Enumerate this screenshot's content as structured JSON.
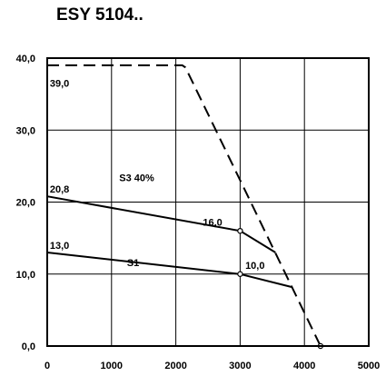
{
  "chart_data": {
    "type": "line",
    "title": "ESY 5104..",
    "xlabel": "",
    "ylabel": "",
    "xlim": [
      0,
      5000
    ],
    "ylim": [
      0,
      40
    ],
    "xticks": [
      0,
      1000,
      2000,
      3000,
      4000,
      5000
    ],
    "yticks": [
      0,
      10,
      20,
      30,
      40
    ],
    "xtick_labels": [
      "0",
      "1000",
      "2000",
      "3000",
      "4000",
      "5000"
    ],
    "ytick_labels": [
      "0,0",
      "10,0",
      "20,0",
      "30,0",
      "40,0"
    ],
    "grid": true,
    "legend": null,
    "series": [
      {
        "name": "S3 40%",
        "style": "solid",
        "color": "#000000",
        "x": [
          0,
          3000,
          3550
        ],
        "y": [
          20.8,
          16.0,
          13.0
        ]
      },
      {
        "name": "S1",
        "style": "solid",
        "color": "#000000",
        "x": [
          0,
          3000,
          3800
        ],
        "y": [
          13.0,
          10.0,
          8.2
        ]
      },
      {
        "style": "dashed",
        "color": "#000000",
        "x": [
          0,
          2100,
          2150,
          4250
        ],
        "y": [
          39.0,
          39.0,
          38.7,
          0.0
        ]
      }
    ],
    "markers": [
      {
        "x": 3000,
        "y": 16.0
      },
      {
        "x": 3000,
        "y": 10.0
      },
      {
        "x": 4250,
        "y": 0.0
      }
    ],
    "annotations": [
      {
        "text": "39,0",
        "x": 40,
        "y": 36.5
      },
      {
        "text": "20,8",
        "x": 40,
        "y": 21.8
      },
      {
        "text": "S3 40%",
        "x": 1120,
        "y": 23.4
      },
      {
        "text": "16,0",
        "x": 2420,
        "y": 17.2
      },
      {
        "text": "13,0",
        "x": 40,
        "y": 14.0
      },
      {
        "text": "S1",
        "x": 1240,
        "y": 11.6
      },
      {
        "text": "10,0",
        "x": 3080,
        "y": 11.2
      }
    ]
  }
}
